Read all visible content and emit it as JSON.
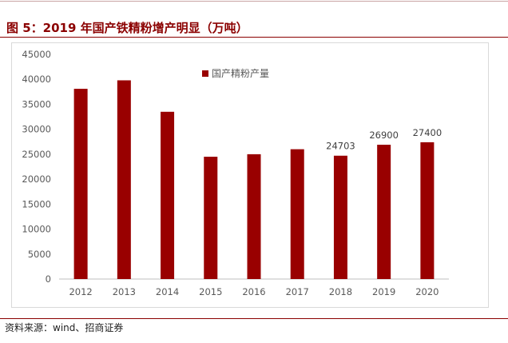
{
  "header": {
    "title": "图 5：2019 年国产铁精粉增产明显（万吨）"
  },
  "footer": {
    "source": "资料来源：wind、招商证券"
  },
  "chart_data": {
    "type": "bar",
    "categories": [
      "2012",
      "2013",
      "2014",
      "2015",
      "2016",
      "2017",
      "2018",
      "2019",
      "2020"
    ],
    "series": [
      {
        "name": "国产精粉产量",
        "values": [
          38100,
          39800,
          33500,
          24500,
          25000,
          26000,
          24703,
          26900,
          27400
        ]
      }
    ],
    "data_labels": {
      "6": "24703",
      "7": "26900",
      "8": "27400"
    },
    "yticks": [
      "0",
      "5000",
      "10000",
      "15000",
      "20000",
      "25000",
      "30000",
      "35000",
      "40000",
      "45000"
    ],
    "ylim": [
      0,
      45000
    ],
    "xlabel": "",
    "ylabel": "",
    "legend_position": "top-center",
    "grid": false,
    "bar_color": "#990000"
  }
}
